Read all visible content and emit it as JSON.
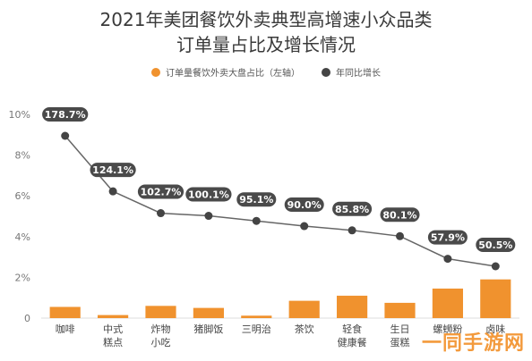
{
  "title": {
    "line1": "2021年美团餐饮外卖典型高增速小众品类",
    "line2": "订单量占比及增长情况"
  },
  "legend": {
    "bar_label": "订单量餐饮外卖大盘占比（左轴）",
    "line_label": "年同比增长"
  },
  "colors": {
    "bar": "#f0922e",
    "line": "#666666",
    "dot": "#444444",
    "label_bg": "#4a4a4a",
    "label_text": "#ffffff",
    "axis_text": "#777777",
    "grid": "#eeeeee"
  },
  "chart_data": {
    "type": "bar+line",
    "categories": [
      "咖啡",
      "中式\n糕点",
      "炸物\n小吃",
      "猪脚饭",
      "三明治",
      "茶饮",
      "轻食\n健康餐",
      "生日\n蛋糕",
      "螺蛳粉",
      "卤味"
    ],
    "y_ticks": [
      "10%",
      "8%",
      "6%",
      "4%",
      "2%",
      "0"
    ],
    "ylim": [
      0,
      10
    ],
    "series": [
      {
        "name": "订单量餐饮外卖大盘占比（左轴）",
        "type": "bar",
        "values": [
          0.55,
          0.15,
          0.6,
          0.5,
          0.12,
          0.85,
          1.1,
          0.75,
          1.45,
          1.9
        ]
      },
      {
        "name": "年同比增长",
        "type": "line",
        "values": [
          178.7,
          124.1,
          102.7,
          100.1,
          95.1,
          90.0,
          85.8,
          80.1,
          57.9,
          50.5
        ],
        "labels": [
          "178.7%",
          "124.1%",
          "102.7%",
          "100.1%",
          "95.1%",
          "90.0%",
          "85.8%",
          "80.1%",
          "57.9%",
          "50.5%"
        ]
      }
    ]
  },
  "watermark": "一同手游网"
}
